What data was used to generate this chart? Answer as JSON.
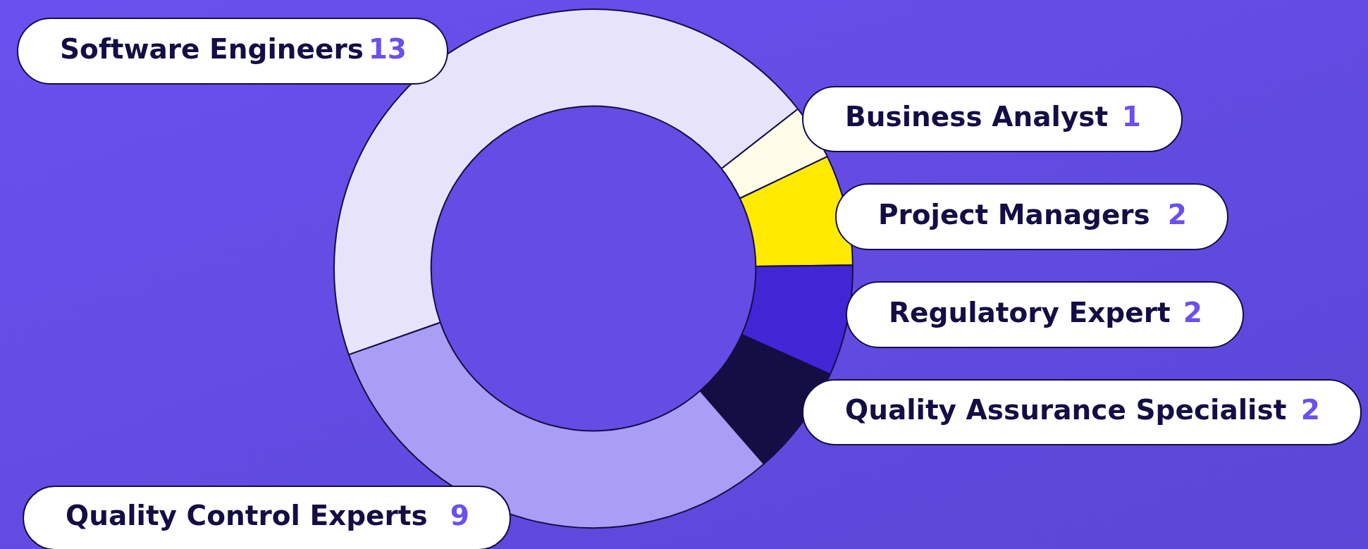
{
  "chart_data": {
    "type": "donut",
    "categories": [
      "Business Analyst",
      "Project Managers",
      "Regulatory Expert",
      "Quality Assurance Specialist",
      "Quality Control Experts",
      "Software Engineers"
    ],
    "values": [
      1,
      2,
      2,
      2,
      9,
      13
    ],
    "colors": [
      "#fffde8",
      "#ffea00",
      "#4226d6",
      "#140e45",
      "#aa9df5",
      "#e6e3fb"
    ],
    "data_labels": true,
    "legend": false
  }
}
